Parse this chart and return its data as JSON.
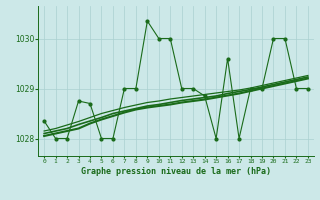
{
  "x": [
    0,
    1,
    2,
    3,
    4,
    5,
    6,
    7,
    8,
    9,
    10,
    11,
    12,
    13,
    14,
    15,
    16,
    17,
    18,
    19,
    20,
    21,
    22,
    23
  ],
  "y_main": [
    1028.35,
    1028.0,
    1028.0,
    1028.75,
    1028.7,
    1028.0,
    1028.0,
    1029.0,
    1029.0,
    1030.35,
    1030.0,
    1030.0,
    1029.0,
    1029.0,
    1028.85,
    1028.0,
    1029.6,
    1028.0,
    1029.0,
    1029.0,
    1030.0,
    1030.0,
    1029.0,
    1029.0
  ],
  "y_trend1": [
    1028.05,
    1028.1,
    1028.15,
    1028.2,
    1028.3,
    1028.38,
    1028.45,
    1028.52,
    1028.58,
    1028.62,
    1028.65,
    1028.68,
    1028.72,
    1028.75,
    1028.78,
    1028.82,
    1028.86,
    1028.9,
    1028.95,
    1029.0,
    1029.05,
    1029.1,
    1029.15,
    1029.2
  ],
  "y_trend2": [
    1028.1,
    1028.15,
    1028.2,
    1028.28,
    1028.35,
    1028.42,
    1028.5,
    1028.55,
    1028.6,
    1028.65,
    1028.68,
    1028.72,
    1028.76,
    1028.79,
    1028.82,
    1028.85,
    1028.9,
    1028.94,
    1028.98,
    1029.03,
    1029.08,
    1029.13,
    1029.18,
    1029.23
  ],
  "y_trend3": [
    1028.15,
    1028.2,
    1028.27,
    1028.34,
    1028.42,
    1028.5,
    1028.56,
    1028.62,
    1028.67,
    1028.72,
    1028.75,
    1028.79,
    1028.82,
    1028.85,
    1028.88,
    1028.91,
    1028.94,
    1028.97,
    1029.01,
    1029.06,
    1029.11,
    1029.16,
    1029.21,
    1029.26
  ],
  "line_color": "#1a6b1a",
  "bg_color": "#cce8e8",
  "grid_color": "#aad0d0",
  "xlabel": "Graphe pression niveau de la mer (hPa)",
  "xlim": [
    -0.5,
    23.5
  ],
  "ylim": [
    1027.65,
    1030.65
  ],
  "yticks": [
    1028,
    1029,
    1030
  ],
  "xtick_labels": [
    "0",
    "1",
    "2",
    "3",
    "4",
    "5",
    "6",
    "7",
    "8",
    "9",
    "10",
    "11",
    "12",
    "13",
    "14",
    "15",
    "16",
    "17",
    "18",
    "19",
    "20",
    "21",
    "22",
    "23"
  ]
}
